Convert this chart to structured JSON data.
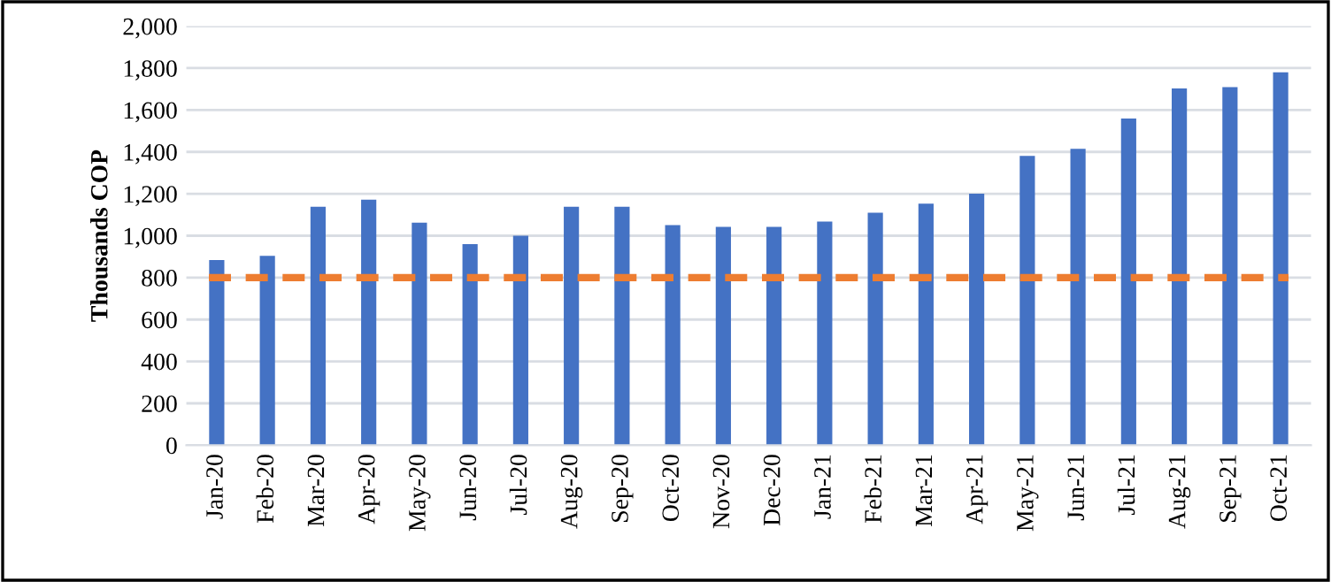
{
  "chart_data": {
    "type": "bar",
    "ylabel": "Thousands COP",
    "categories": [
      "Jan-20",
      "Feb-20",
      "Mar-20",
      "Apr-20",
      "May-20",
      "Jun-20",
      "Jul-20",
      "Aug-20",
      "Sep-20",
      "Oct-20",
      "Nov-20",
      "Dec-20",
      "Jan-21",
      "Feb-21",
      "Mar-21",
      "Apr-21",
      "May-21",
      "Jun-21",
      "Jul-21",
      "Aug-21",
      "Sep-21",
      "Oct-21"
    ],
    "values": [
      884,
      904,
      1138,
      1172,
      1062,
      960,
      1000,
      1138,
      1138,
      1051,
      1042,
      1042,
      1068,
      1110,
      1153,
      1200,
      1381,
      1415,
      1559,
      1703,
      1709,
      1780
    ],
    "color": "#4472c4",
    "ylim": [
      0,
      2000
    ],
    "yticks": [
      {
        "value": 0,
        "label": "0"
      },
      {
        "value": 200,
        "label": "200"
      },
      {
        "value": 400,
        "label": "400"
      },
      {
        "value": 600,
        "label": "600"
      },
      {
        "value": 800,
        "label": "800"
      },
      {
        "value": 1000,
        "label": "1,000"
      },
      {
        "value": 1200,
        "label": "1,200"
      },
      {
        "value": 1400,
        "label": "1,400"
      },
      {
        "value": 1600,
        "label": "1,600"
      },
      {
        "value": 1800,
        "label": "1,800"
      },
      {
        "value": 2000,
        "label": "2,000"
      }
    ],
    "ref_lines": [
      {
        "axis": "y",
        "value": 800,
        "color": "#ed7d31",
        "line_style": "dashed"
      }
    ],
    "grid": "y",
    "legend": false
  }
}
